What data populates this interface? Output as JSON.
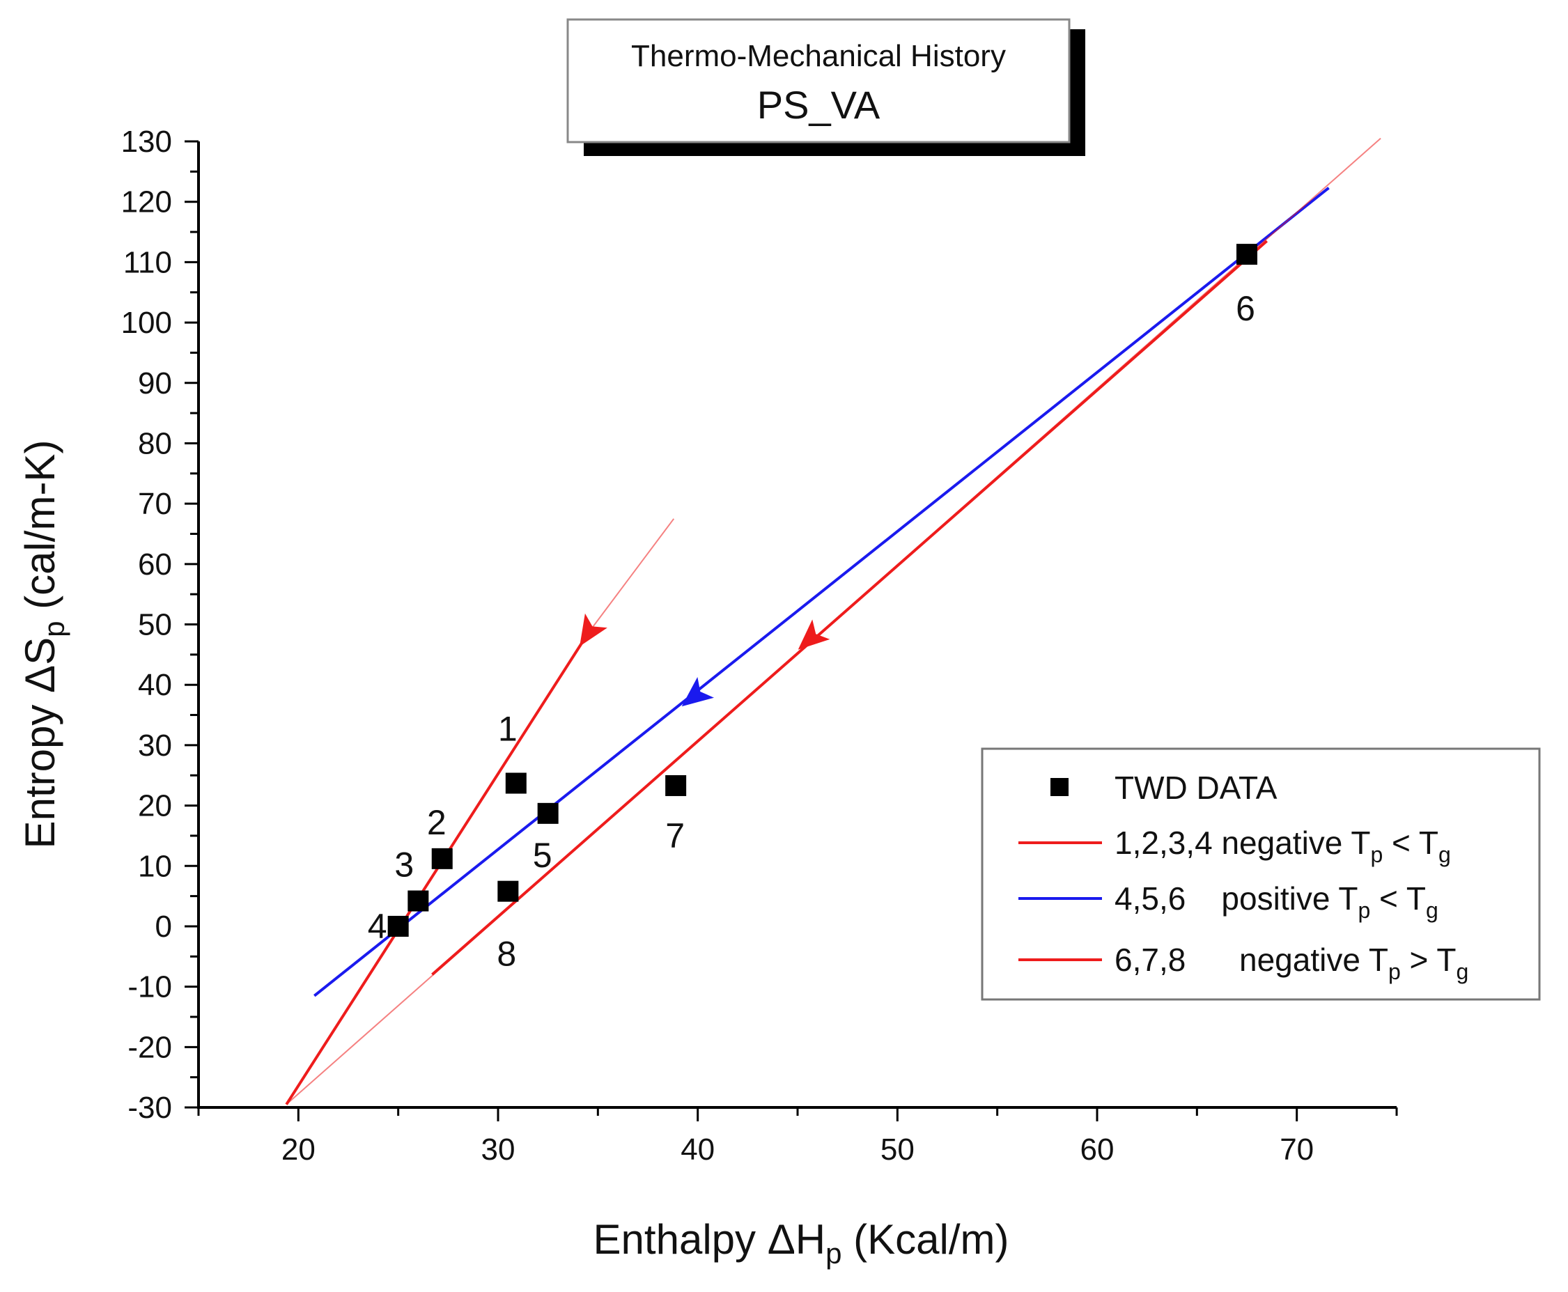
{
  "chart_data": {
    "type": "scatter",
    "title": "Thermo-Mechanical History",
    "subtitle": "PS_VA",
    "xlabel": {
      "main": "Enthalpy ΔH",
      "sub": "p",
      "unit": " (Kcal/m)"
    },
    "ylabel": {
      "main": "Entropy ΔS",
      "sub": "p",
      "unit": " (cal/m-K)"
    },
    "xlim": [
      15,
      75
    ],
    "ylim": [
      -30,
      130
    ],
    "xticks": [
      20,
      30,
      40,
      50,
      60,
      70
    ],
    "yticks": [
      -30,
      -20,
      -10,
      0,
      10,
      20,
      30,
      40,
      50,
      60,
      70,
      80,
      90,
      100,
      110,
      120,
      130
    ],
    "x_minor_step": 5,
    "y_minor_step": 5,
    "grid": false,
    "legend_position": "right",
    "series": [
      {
        "name": "TWD DATA",
        "kind": "points",
        "color": "#000000",
        "points": [
          {
            "label": "1",
            "x": 30.9,
            "y": 23.7
          },
          {
            "label": "2",
            "x": 27.2,
            "y": 11.2
          },
          {
            "label": "3",
            "x": 26.0,
            "y": 4.2
          },
          {
            "label": "4",
            "x": 25.0,
            "y": 0.0
          },
          {
            "label": "5",
            "x": 32.5,
            "y": 18.7
          },
          {
            "label": "6",
            "x": 67.5,
            "y": 111.3
          },
          {
            "label": "7",
            "x": 38.9,
            "y": 23.3
          },
          {
            "label": "8",
            "x": 30.5,
            "y": 5.8
          }
        ]
      },
      {
        "name": "1,2,3,4 negative",
        "condition": {
          "left": "T",
          "left_sub": "p",
          "op": " < ",
          "right": "T",
          "right_sub": "g"
        },
        "kind": "line",
        "color": "#ee1c1c",
        "x": [
          19.4,
          34.5
        ],
        "y": [
          -29.5,
          48.5
        ],
        "extension": {
          "x": [
            34.5,
            38.8
          ],
          "y": [
            48.5,
            67.5
          ]
        },
        "arrow_at": {
          "x": 34.5,
          "y": 48.5
        }
      },
      {
        "name": "4,5,6    positive",
        "condition": {
          "left": "T",
          "left_sub": "p",
          "op": " < ",
          "right": "T",
          "right_sub": "g"
        },
        "kind": "line",
        "color": "#1a1aee",
        "x": [
          20.8,
          71.6
        ],
        "y": [
          -11.5,
          122.3
        ],
        "arrow_at": {
          "x": 39.8,
          "y": 38.0
        }
      },
      {
        "name": "6,7,8      negative",
        "condition": {
          "left": "T",
          "left_sub": "p",
          "op": " > ",
          "right": "T",
          "right_sub": "g"
        },
        "kind": "line",
        "color": "#ee1c1c",
        "x": [
          26.7,
          68.5
        ],
        "y": [
          -8.0,
          113.5
        ],
        "extension": {
          "x": [
            19.4,
            74.2
          ],
          "y": [
            -29.5,
            130.5
          ]
        },
        "arrow_at": {
          "x": 45.6,
          "y": 47.5
        }
      }
    ]
  }
}
